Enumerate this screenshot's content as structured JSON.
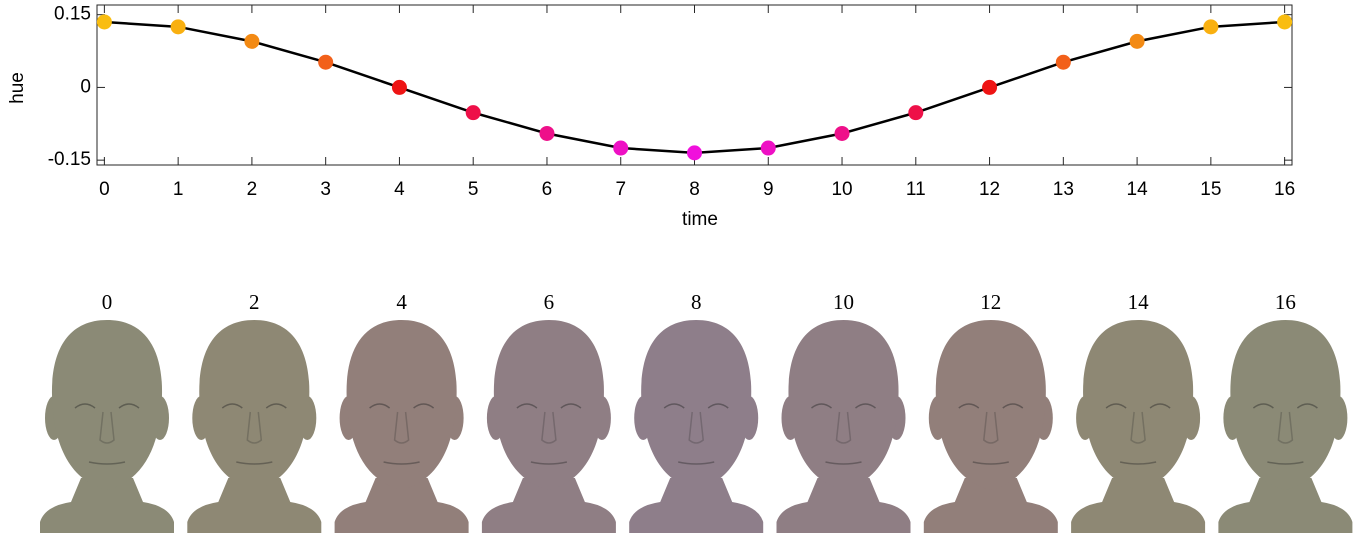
{
  "chart_data": {
    "type": "line",
    "x": [
      0,
      1,
      2,
      3,
      4,
      5,
      6,
      7,
      8,
      9,
      10,
      11,
      12,
      13,
      14,
      15,
      16
    ],
    "series": [
      {
        "color": "#000000",
        "values": [
          0.135,
          0.125,
          0.095,
          0.052,
          0,
          -0.052,
          -0.095,
          -0.125,
          -0.135,
          -0.125,
          -0.095,
          -0.052,
          0,
          0.052,
          0.095,
          0.125,
          0.135
        ],
        "marker_colors": [
          "#f9bd10",
          "#f9b010",
          "#f38a14",
          "#f2601a",
          "#ee1414",
          "#ee1048",
          "#ee108a",
          "#ee10c4",
          "#f010dc",
          "#ee10c4",
          "#ee108a",
          "#ee1048",
          "#ee1414",
          "#f2601a",
          "#f38a14",
          "#f9b010",
          "#f9bd10"
        ]
      }
    ],
    "xlabel": "time",
    "ylabel": "hue",
    "xlim": [
      -0.1,
      16.1
    ],
    "ylim": [
      -0.16,
      0.17
    ],
    "xticks": [
      0,
      1,
      2,
      3,
      4,
      5,
      6,
      7,
      8,
      9,
      10,
      11,
      12,
      13,
      14,
      15,
      16
    ],
    "yticks": [
      -0.15,
      0,
      0.15
    ]
  },
  "faces": [
    {
      "label": "0",
      "color": "#8b8a76"
    },
    {
      "label": "2",
      "color": "#8e8874"
    },
    {
      "label": "4",
      "color": "#927f7a"
    },
    {
      "label": "6",
      "color": "#8f7e84"
    },
    {
      "label": "8",
      "color": "#8e7e8a"
    },
    {
      "label": "10",
      "color": "#8f7e84"
    },
    {
      "label": "12",
      "color": "#927f7a"
    },
    {
      "label": "14",
      "color": "#8e8874"
    },
    {
      "label": "16",
      "color": "#8b8a76"
    }
  ]
}
